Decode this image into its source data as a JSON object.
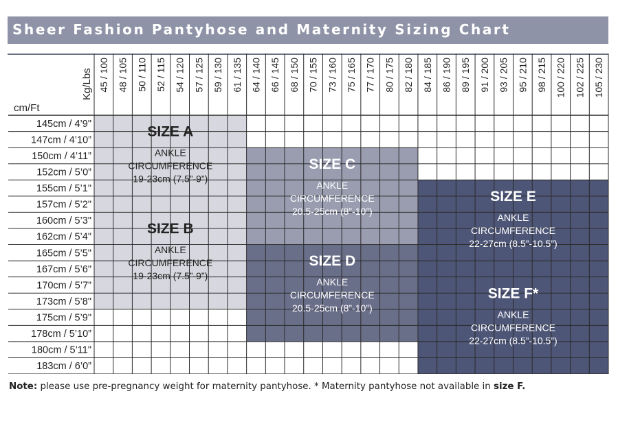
{
  "title": "Sheer Fashion Pantyhose and Maternity Sizing Chart",
  "header": {
    "weight_axis_label": "Kg/Lbs",
    "height_axis_label": "cm/Ft"
  },
  "weights": [
    "45 / 100",
    "48 / 105",
    "50 / 110",
    "52 / 115",
    "54 / 120",
    "57 / 125",
    "59 / 130",
    "61 / 135",
    "64 / 140",
    "66 / 145",
    "68 / 150",
    "70 / 155",
    "73 / 160",
    "75 / 165",
    "77 / 170",
    "80 / 175",
    "82 / 180",
    "84 / 185",
    "86 / 190",
    "89 / 195",
    "91 / 200",
    "93 / 205",
    "95 / 210",
    "98 / 215",
    "100 / 220",
    "102 / 225",
    "105 / 230"
  ],
  "heights": [
    "145cm / 4’9\"",
    "147cm / 4’10”",
    "150cm / 4’11”",
    "152cm / 5’0”",
    "155cm / 5’1\"",
    "157cm / 5’2\"",
    "160cm / 5’3\"",
    "162cm / 5’4\"",
    "165cm / 5’5\"",
    "167cm / 5’6\"",
    "170cm / 5’7”",
    "173cm / 5’8\"",
    "175cm / 5’9\"",
    "178cm / 5’10”",
    "180cm / 5’11\"",
    "183cm / 6’0”"
  ],
  "sizes": [
    {
      "id": "a",
      "name": "SIZE A",
      "ankle": "ANKLE",
      "circ": "CIRCUMFERENCE",
      "range": "19-23cm (7.5”-9”)",
      "col_start": 0,
      "col_end": 8,
      "row_start": 0,
      "row_end": 6,
      "fill": "#d7d8df",
      "text_color": "#222222"
    },
    {
      "id": "b",
      "name": "SIZE B",
      "ankle": "ANKLE",
      "circ": "CIRCUMFERENCE",
      "range": "19-23cm (7.5”-9”)",
      "col_start": 0,
      "col_end": 8,
      "row_start": 6,
      "row_end": 12,
      "fill": "#d7d8df",
      "text_color": "#222222"
    },
    {
      "id": "c",
      "name": "SIZE C",
      "ankle": "ANKLE",
      "circ": "CIRCUMFERENCE",
      "range": "20.5-25cm (8”-10”)",
      "col_start": 8,
      "col_end": 17,
      "row_start": 2,
      "row_end": 8,
      "fill": "#9a9db0",
      "text_color": "#ffffff"
    },
    {
      "id": "d",
      "name": "SIZE D",
      "ankle": "ANKLE",
      "circ": "CIRCUMFERENCE",
      "range": "20.5-25cm (8”-10”)",
      "col_start": 8,
      "col_end": 17,
      "row_start": 8,
      "row_end": 14,
      "fill": "#6a6f89",
      "text_color": "#ffffff"
    },
    {
      "id": "e",
      "name": "SIZE E",
      "ankle": "ANKLE",
      "circ": "CIRCUMFERENCE",
      "range": "22-27cm (8.5”-10.5”)",
      "col_start": 17,
      "col_end": 27,
      "row_start": 4,
      "row_end": 10,
      "fill": "#4e5677",
      "text_color": "#ffffff"
    },
    {
      "id": "f",
      "name": "SIZE F*",
      "ankle": "ANKLE",
      "circ": "CIRCUMFERENCE",
      "range": "22-27cm (8.5”-10.5”)",
      "col_start": 17,
      "col_end": 27,
      "row_start": 10,
      "row_end": 16,
      "fill": "#4e5677",
      "text_color": "#ffffff"
    }
  ],
  "note": {
    "label": "Note:",
    "text1": " please use pre-pregnancy weight for maternity pantyhose. * Maternity pantyhose not available in ",
    "strong": "size F."
  },
  "colors": {
    "title_bar": "#8e93a7",
    "grid_line": "#2a2a2a"
  }
}
